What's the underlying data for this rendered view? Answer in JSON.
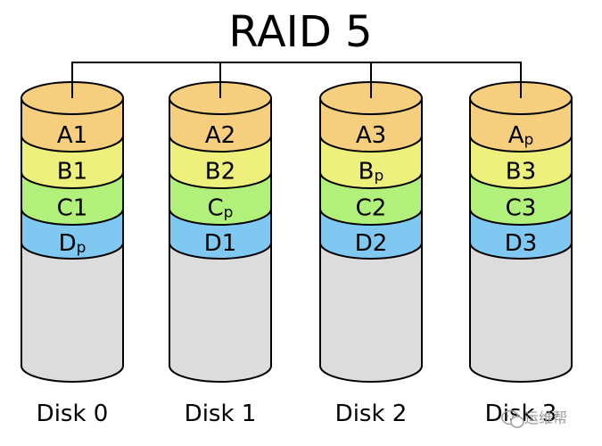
{
  "title": "RAID 5",
  "colors": {
    "A": "#f5cf7d",
    "B": "#eef07c",
    "C": "#b2f07c",
    "D": "#7ec8f2",
    "body": "#dcdcdc",
    "stroke": "#000000"
  },
  "disks": [
    {
      "label": "Disk 0",
      "blocks": [
        {
          "main": "A1",
          "sub": "",
          "row": "A"
        },
        {
          "main": "B1",
          "sub": "",
          "row": "B"
        },
        {
          "main": "C1",
          "sub": "",
          "row": "C"
        },
        {
          "main": "D",
          "sub": "p",
          "row": "D"
        }
      ]
    },
    {
      "label": "Disk 1",
      "blocks": [
        {
          "main": "A2",
          "sub": "",
          "row": "A"
        },
        {
          "main": "B2",
          "sub": "",
          "row": "B"
        },
        {
          "main": "C",
          "sub": "p",
          "row": "C"
        },
        {
          "main": "D1",
          "sub": "",
          "row": "D"
        }
      ]
    },
    {
      "label": "Disk 2",
      "blocks": [
        {
          "main": "A3",
          "sub": "",
          "row": "A"
        },
        {
          "main": "B",
          "sub": "p",
          "row": "B"
        },
        {
          "main": "C2",
          "sub": "",
          "row": "C"
        },
        {
          "main": "D2",
          "sub": "",
          "row": "D"
        }
      ]
    },
    {
      "label": "Disk 3",
      "blocks": [
        {
          "main": "A",
          "sub": "p",
          "row": "A"
        },
        {
          "main": "B3",
          "sub": "",
          "row": "B"
        },
        {
          "main": "C3",
          "sub": "",
          "row": "C"
        },
        {
          "main": "D3",
          "sub": "",
          "row": "D"
        }
      ]
    }
  ],
  "watermark": {
    "icon": "wechat-icon",
    "text": "运维帮"
  }
}
